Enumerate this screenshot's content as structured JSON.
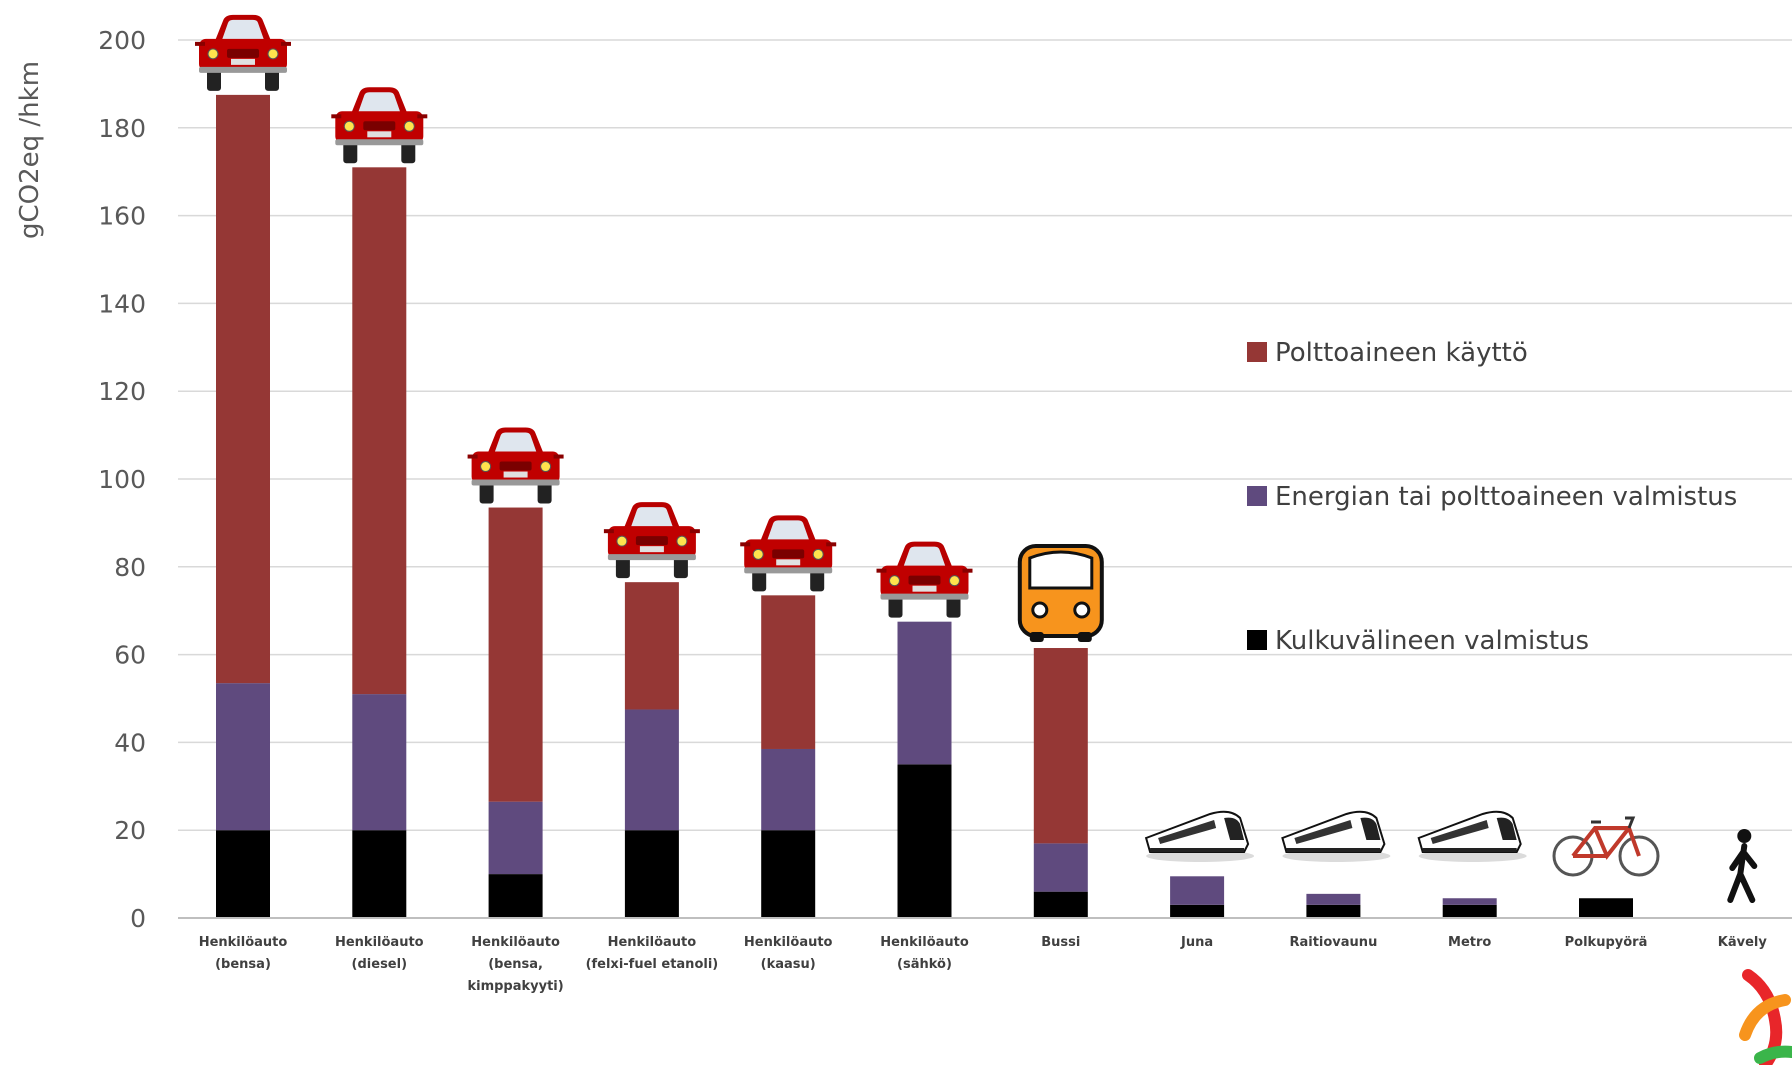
{
  "chart_data": {
    "type": "bar",
    "stacked": true,
    "title": "",
    "xlabel": "",
    "ylabel": "gCO2eq /hkm",
    "ylim": [
      0,
      200
    ],
    "yticks": [
      0,
      20,
      40,
      60,
      80,
      100,
      120,
      140,
      160,
      180,
      200
    ],
    "grid": true,
    "legend_position": "right",
    "categories": [
      [
        "Henkilöauto",
        "(bensa)"
      ],
      [
        "Henkilöauto",
        "(diesel)"
      ],
      [
        "Henkilöauto",
        "(bensa,",
        "kimppakyyti)"
      ],
      [
        "Henkilöauto",
        "(felxi-fuel etanoli)"
      ],
      [
        "Henkilöauto",
        "(kaasu)"
      ],
      [
        "Henkilöauto",
        "(sähkö)"
      ],
      [
        "Bussi"
      ],
      [
        "Juna"
      ],
      [
        "Raitiovaunu"
      ],
      [
        "Metro"
      ],
      [
        "Polkupyörä"
      ],
      [
        "Kävely"
      ]
    ],
    "category_icons": [
      "car-icon",
      "car-icon",
      "car-icon",
      "car-icon",
      "car-icon",
      "car-icon",
      "bus-icon",
      "train-icon",
      "train-icon",
      "train-icon",
      "bicycle-icon",
      "walking-person-icon"
    ],
    "series": [
      {
        "name": "Kulkuvälineen valmistus",
        "color": "#000000",
        "values": [
          20,
          20,
          10,
          20,
          20,
          35,
          6,
          3,
          3,
          3,
          4.5,
          0
        ]
      },
      {
        "name": "Energian tai polttoaineen valmistus",
        "color": "#5f4a7e",
        "values": [
          33.5,
          31,
          16.5,
          27.5,
          18.5,
          32.5,
          11,
          6.5,
          2.5,
          1.5,
          0,
          0
        ]
      },
      {
        "name": "Polttoaineen käyttö",
        "color": "#953735",
        "values": [
          134,
          120,
          67,
          29,
          35,
          0,
          44.5,
          0,
          0,
          0,
          0,
          0
        ]
      }
    ],
    "legend_order": [
      2,
      1,
      0
    ]
  },
  "colors": {
    "car_body": "#c00000",
    "bus_body": "#f7941d",
    "bicycle_frame": "#c0392b",
    "logo_red": "#e8262a",
    "logo_orange": "#f7941d",
    "logo_green": "#3ab54a"
  }
}
